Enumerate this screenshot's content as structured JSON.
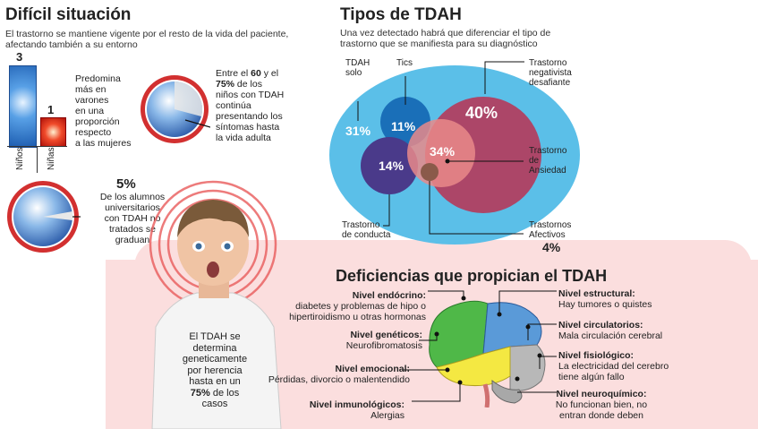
{
  "left": {
    "title": "Difícil situación",
    "subtitle_l1": "El trastorno se mantiene vigente  por el resto de la vida del paciente,",
    "subtitle_l2": "afectando también a su entorno",
    "boys_value": "3",
    "girls_value": "1",
    "boys_label": "Niños",
    "girls_label": "Niñas",
    "gender_text": [
      "Predomina",
      "más en",
      "varones",
      "en una",
      "proporción",
      "respecto",
      "a las mujeres"
    ],
    "pct60_lines": [
      {
        "a": "Entre el ",
        "b": "60",
        "c": " y el"
      },
      {
        "a": "",
        "b": "75%",
        "c": " de los"
      }
    ],
    "pct60_rest": [
      "niños con TDAH",
      "continúa",
      "presentando los",
      "síntomas hasta",
      "la vida adulta"
    ],
    "pct5_value": "5%",
    "pct5_text": [
      "De los alumnos",
      "universitarios",
      "con TDAH no",
      "tratados se",
      "graduan"
    ],
    "boy_text_lines": [
      "El TDAH se",
      "determina",
      "geneticamente",
      "por herencia",
      "hasta en un"
    ],
    "boy_pct": "75%",
    "boy_pct_suffix": " de los",
    "boy_last": "casos"
  },
  "types": {
    "title": "Tipos de TDAH",
    "subtitle_l1": "Una vez detectado habrá que diferenciar el tipo de",
    "subtitle_l2": "trastorno que se manifiesta para su diagnóstico",
    "solo_label_l1": "TDAH",
    "solo_label_l2": "solo",
    "tics_label": "Tics",
    "negativista_l1": "Trastorno",
    "negativista_l2": "negativista",
    "negativista_l3": "desafiante",
    "ansiedad_l1": "Trastorno",
    "ansiedad_l2": "de",
    "ansiedad_l3": "Ansiedad",
    "conducta_l1": "Trastorno",
    "conducta_l2": "de conducta",
    "afectivos_l1": "Trastornos",
    "afectivos_l2": "Afectivos",
    "afectivos_pct": "4%",
    "pct_solo": "31%",
    "pct_tics": "11%",
    "pct_negativista": "40%",
    "pct_ansiedad": "34%",
    "pct_conducta": "14%"
  },
  "deficiencias": {
    "title": "Deficiencias que propician  el TDAH",
    "left_items": [
      {
        "title": "Nivel endócrino:",
        "l1": "diabetes y problemas de hipo o",
        "l2": "hipertiroidismo u otras hormonas"
      },
      {
        "title": "Nivel genéticos:",
        "l1": "Neurofibromatosis",
        "l2": ""
      },
      {
        "title": "Nivel emocional:",
        "l1": "Pérdidas, divorcio o malentendido",
        "l2": ""
      },
      {
        "title": "Nivel inmunológicos:",
        "l1": "Alergias",
        "l2": ""
      }
    ],
    "right_items": [
      {
        "title": "Nivel estructural:",
        "l1": "Hay tumores o quistes",
        "l2": ""
      },
      {
        "title": "Nivel circulatorios:",
        "l1": "Mala circulación cerebral",
        "l2": ""
      },
      {
        "title": "Nivel fisiológico:",
        "l1": "La electricidad del cerebro",
        "l2": "tiene algún fallo"
      },
      {
        "title": "Nivel neuroquímico:",
        "l1": "No funcionan bien, no",
        "l2": "entran donde deben"
      }
    ]
  },
  "colors": {
    "big_ellipse": "#5bbfe8",
    "negativista": "#b5395a",
    "tics": "#1a6fb8",
    "conducta": "#4a3a8a",
    "ansiedad": "#e98a8a",
    "afectivos": "#8a5a4a",
    "brain_green": "#4fb848",
    "brain_blue": "#5a9ad8",
    "brain_yellow": "#f4e842",
    "brain_grey": "#b8b8b8",
    "accent_red": "#e03030"
  }
}
